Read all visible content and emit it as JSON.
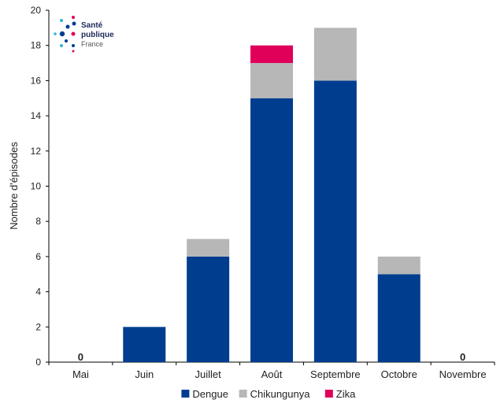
{
  "logo": {
    "line1": "Santé",
    "line2": "publique",
    "line3": "France"
  },
  "chart_data": {
    "type": "bar",
    "stacked": true,
    "ylabel": "Nombre d'épisodes",
    "ylim": [
      0,
      20
    ],
    "yticks": [
      0,
      2,
      4,
      6,
      8,
      10,
      12,
      14,
      16,
      18,
      20
    ],
    "categories": [
      "Mai",
      "Juin",
      "Juillet",
      "Août",
      "Septembre",
      "Octobre",
      "Novembre"
    ],
    "series": [
      {
        "name": "Dengue",
        "color": "#003d8f",
        "values": [
          0,
          2,
          6,
          15,
          16,
          5,
          0
        ]
      },
      {
        "name": "Chikungunya",
        "color": "#b7b7b7",
        "values": [
          0,
          0,
          1,
          2,
          3,
          1,
          0
        ]
      },
      {
        "name": "Zika",
        "color": "#e0005a",
        "values": [
          0,
          0,
          0,
          1,
          0,
          0,
          0
        ]
      }
    ],
    "data_labels": [
      {
        "category": "Mai",
        "text": "0"
      },
      {
        "category": "Novembre",
        "text": "0"
      }
    ],
    "legend_position": "bottom",
    "grid": false
  }
}
